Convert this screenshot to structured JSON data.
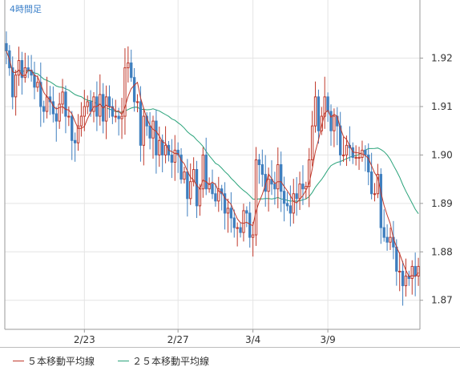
{
  "period_label": "4時間足",
  "colors": {
    "up": "#c0392b",
    "down": "#3f7fbf",
    "ma5": "#c0392b",
    "ma25": "#2aa37a",
    "grid": "#e4e4e4",
    "axis": "#9a9a9a",
    "background": "#ffffff",
    "period_label": "#3a7fc9"
  },
  "legend": [
    {
      "label": "５本移動平均線",
      "color": "#c0392b"
    },
    {
      "label": "２５本移動平均線",
      "color": "#2aa37a"
    }
  ],
  "chart_data": {
    "type": "candlestick",
    "title": "",
    "xlabel": "",
    "ylabel": "",
    "ylim": [
      1.864,
      1.932
    ],
    "y_ticks": [
      1.87,
      1.88,
      1.89,
      1.9,
      1.91,
      1.92
    ],
    "y_tick_labels": [
      "1.87",
      "1.88",
      "1.89",
      "1.90",
      "1.91",
      "1.92"
    ],
    "x_ticks": [
      {
        "index": 25,
        "label": "2/23"
      },
      {
        "index": 55,
        "label": "2/27"
      },
      {
        "index": 79,
        "label": "3/4"
      },
      {
        "index": 103,
        "label": "3/9"
      }
    ],
    "grid": true,
    "legend_position": "bottom",
    "series": [
      {
        "name": "５本移動平均線",
        "kind": "moving_average",
        "period": 5
      },
      {
        "name": "２５本移動平均線",
        "kind": "moving_average",
        "period": 25
      }
    ],
    "candles_close": [
      1.9215,
      1.918,
      1.912,
      1.9165,
      1.9195,
      1.916,
      1.918,
      1.9175,
      1.9165,
      1.914,
      1.915,
      1.91,
      1.909,
      1.912,
      1.911,
      1.9085,
      1.907,
      1.9105,
      1.913,
      1.908,
      1.908,
      1.903,
      1.9025,
      1.906,
      1.908,
      1.91,
      1.911,
      1.909,
      1.912,
      1.908,
      1.9125,
      1.907,
      1.912,
      1.91,
      1.908,
      1.908,
      1.9075,
      1.908,
      1.918,
      1.919,
      1.916,
      1.911,
      1.911,
      1.902,
      1.908,
      1.906,
      1.9035,
      1.907,
      1.9,
      1.903,
      1.9,
      1.902,
      1.9,
      1.8985,
      1.901,
      1.9,
      1.895,
      1.8965,
      1.891,
      1.8945,
      1.897,
      1.8895,
      1.893,
      1.9,
      1.893,
      1.894,
      1.892,
      1.8905,
      1.893,
      1.892,
      1.888,
      1.889,
      1.887,
      1.885,
      1.885,
      1.884,
      1.8885,
      1.888,
      1.883,
      1.8835,
      1.899,
      1.898,
      1.896,
      1.8925,
      1.895,
      1.894,
      1.893,
      1.898,
      1.8925,
      1.89,
      1.8895,
      1.888,
      1.892,
      1.891,
      1.894,
      1.893,
      1.8935,
      1.899,
      1.906,
      1.912,
      1.905,
      1.908,
      1.912,
      1.909,
      1.905,
      1.908,
      1.906,
      1.9,
      1.9,
      1.902,
      1.9015,
      1.8995,
      1.8995,
      1.8995,
      1.901,
      1.9,
      1.8965,
      1.892,
      1.892,
      1.896,
      1.885,
      1.883,
      1.882,
      1.883,
      1.881,
      1.876,
      1.876,
      1.873,
      1.875,
      1.8745,
      1.877,
      1.875,
      1.877
    ]
  }
}
